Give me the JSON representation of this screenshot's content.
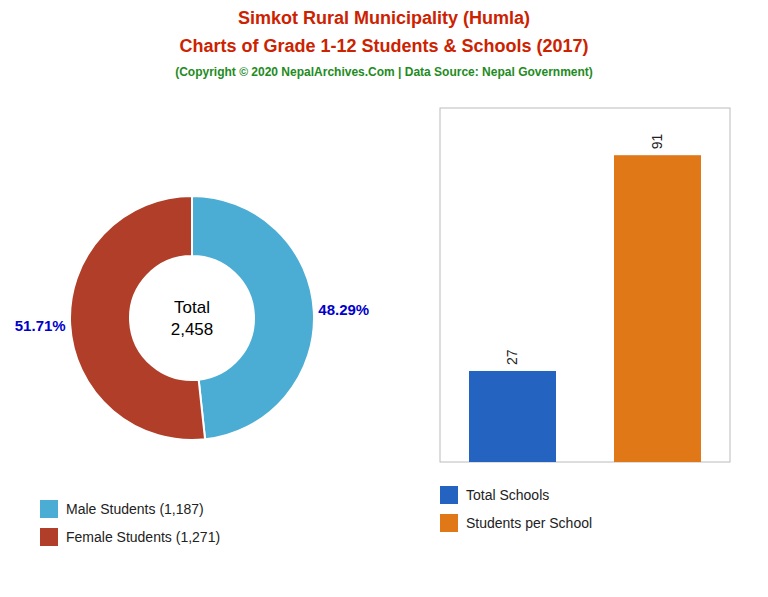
{
  "chart_data": [
    {
      "type": "pie",
      "title": "Simkot Rural Municipality (Humla)",
      "subtitle": "Charts of Grade 1-12 Students & Schools (2017)",
      "annotations": [
        "(Copyright © 2020 NepalArchives.Com | Data Source: Nepal Government)",
        "Total\n2,458"
      ],
      "categories": [
        "Male Students (1,187)",
        "Female Students (1,271)"
      ],
      "values": [
        48.29,
        51.71
      ],
      "value_labels": [
        "48.29%",
        "51.71%"
      ],
      "colors": [
        "#4badd4",
        "#b03e28"
      ],
      "data_labels": true,
      "legend": "bottom-left"
    },
    {
      "type": "bar",
      "categories": [
        "Total Schools",
        "Students per School"
      ],
      "values": [
        27,
        91
      ],
      "colors": [
        "#2563c0",
        "#e07818"
      ],
      "ylim": [
        0,
        105
      ],
      "data_labels": true,
      "tick_labels": false,
      "grid": false,
      "legend": "bottom-left"
    }
  ]
}
